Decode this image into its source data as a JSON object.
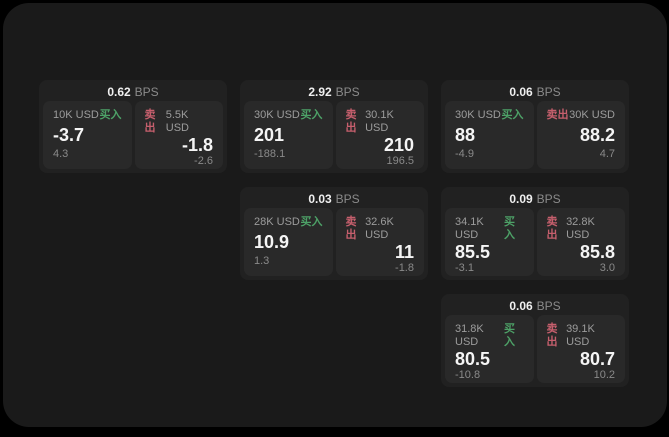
{
  "theme": {
    "page_bg": "#000000",
    "window_bg": "#1a1a1a",
    "card_bg": "#212121",
    "panel_bg": "#292929",
    "text_primary": "#f5f5f5",
    "text_muted": "#8a8a8a",
    "buy_color": "#4da167",
    "sell_color": "#c65f6d"
  },
  "labels": {
    "bps": "BPS",
    "buy": "买入",
    "sell": "卖出"
  },
  "cards": [
    {
      "bps": "0.62",
      "buy": {
        "amount": "10K USD",
        "price": "-3.7",
        "sub": "4.3"
      },
      "sell": {
        "amount": "5.5K USD",
        "price": "-1.8",
        "sub": "-2.6"
      }
    },
    {
      "bps": "2.92",
      "buy": {
        "amount": "30K USD",
        "price": "201",
        "sub": "-188.1"
      },
      "sell": {
        "amount": "30.1K USD",
        "price": "210",
        "sub": "196.5"
      }
    },
    {
      "bps": "0.06",
      "buy": {
        "amount": "30K USD",
        "price": "88",
        "sub": "-4.9"
      },
      "sell": {
        "amount": "30K USD",
        "price": "88.2",
        "sub": "4.7"
      }
    },
    {
      "bps": "0.03",
      "buy": {
        "amount": "28K USD",
        "price": "10.9",
        "sub": "1.3"
      },
      "sell": {
        "amount": "32.6K USD",
        "price": "11",
        "sub": "-1.8"
      }
    },
    {
      "bps": "0.09",
      "buy": {
        "amount": "34.1K USD",
        "price": "85.5",
        "sub": "-3.1"
      },
      "sell": {
        "amount": "32.8K USD",
        "price": "85.8",
        "sub": "3.0"
      }
    },
    {
      "bps": "0.06",
      "buy": {
        "amount": "31.8K USD",
        "price": "80.5",
        "sub": "-10.8"
      },
      "sell": {
        "amount": "39.1K USD",
        "price": "80.7",
        "sub": "10.2"
      }
    }
  ]
}
